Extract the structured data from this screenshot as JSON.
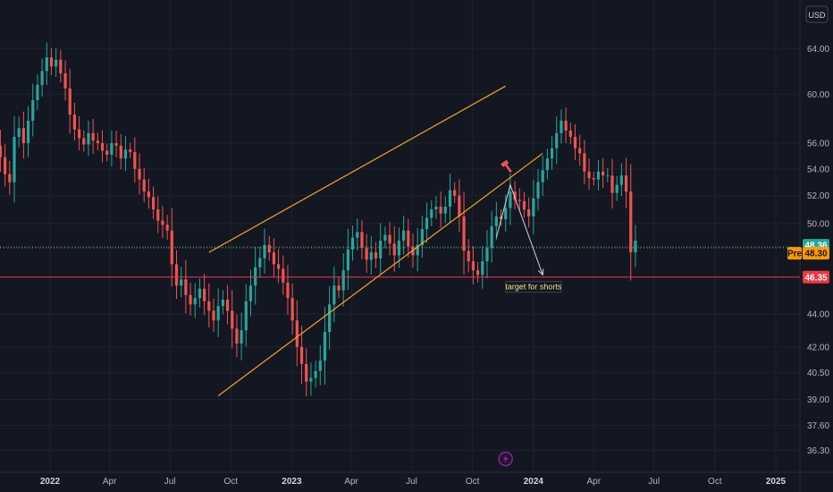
{
  "currency_button": "USD",
  "chart_data": {
    "type": "candlestick",
    "ylim": [
      35.5,
      67
    ],
    "y_ticks": [
      "64.00",
      "60.00",
      "56.00",
      "54.00",
      "52.00",
      "50.00",
      "48.36",
      "48.30",
      "46.35",
      "44.00",
      "42.00",
      "40.50",
      "39.00",
      "37.60",
      "36.30"
    ],
    "y_tick_values": [
      64,
      60,
      56,
      54,
      52,
      50,
      48.36,
      48.3,
      46.35,
      44,
      42,
      40.5,
      39,
      37.6,
      36.3
    ],
    "x_ticks": [
      {
        "label": "2022",
        "date": "2022-01-01",
        "major": true
      },
      {
        "label": "Apr",
        "date": "2022-04-01"
      },
      {
        "label": "Jul",
        "date": "2022-07-01"
      },
      {
        "label": "Oct",
        "date": "2022-10-01"
      },
      {
        "label": "2023",
        "date": "2023-01-01",
        "major": true
      },
      {
        "label": "Apr",
        "date": "2023-04-01"
      },
      {
        "label": "Jul",
        "date": "2023-07-01"
      },
      {
        "label": "Oct",
        "date": "2023-10-01"
      },
      {
        "label": "2024",
        "date": "2024-01-01",
        "major": true
      },
      {
        "label": "Apr",
        "date": "2024-04-01"
      },
      {
        "label": "Jul",
        "date": "2024-07-01"
      },
      {
        "label": "Oct",
        "date": "2024-10-01"
      },
      {
        "label": "2025",
        "date": "2025-01-01",
        "major": true
      }
    ],
    "closes": [
      55.2,
      55.8,
      54.9,
      53.6,
      53.0,
      56.5,
      57.2,
      56.0,
      57.8,
      59.5,
      60.8,
      62.0,
      63.2,
      62.4,
      63.0,
      61.8,
      60.5,
      58.3,
      57.1,
      56.4,
      55.9,
      56.8,
      56.2,
      56.0,
      55.4,
      55.1,
      56.0,
      55.8,
      54.8,
      55.5,
      55.3,
      54.0,
      53.2,
      52.3,
      51.9,
      51.0,
      50.2,
      49.9,
      49.5,
      47.2,
      45.8,
      46.2,
      45.2,
      44.6,
      45.0,
      45.6,
      44.8,
      44.2,
      43.6,
      44.5,
      44.9,
      44.2,
      43.1,
      42.2,
      43.0,
      44.8,
      45.8,
      47.0,
      47.6,
      48.5,
      48.0,
      47.2,
      46.9,
      46.0,
      45.0,
      43.6,
      42.0,
      41.0,
      40.0,
      40.2,
      40.6,
      41.2,
      42.9,
      44.6,
      45.8,
      45.5,
      46.8,
      48.2,
      49.0,
      49.4,
      48.3,
      47.5,
      48.0,
      47.6,
      48.8,
      49.2,
      48.6,
      47.8,
      48.8,
      49.5,
      48.4,
      47.8,
      48.5,
      49.6,
      50.4,
      51.0,
      51.2,
      50.7,
      51.2,
      52.4,
      52.0,
      50.5,
      48.1,
      47.4,
      46.8,
      46.5,
      47.4,
      48.3,
      49.8,
      50.5,
      50.3,
      51.1,
      52.3,
      51.7,
      51.6,
      51.0,
      50.5,
      51.8,
      53.0,
      53.9,
      54.8,
      55.6,
      56.8,
      57.8,
      57.0,
      56.5,
      55.6,
      55.2,
      53.8,
      53.3,
      53.2,
      53.8,
      53.5,
      53.5,
      52.2,
      52.8,
      53.5,
      52.3,
      48.0,
      48.8
    ],
    "series_start": "2021-10-04",
    "series_interval_days": 7,
    "rising_channel": {
      "upper": [
        {
          "date": "2022-08-29",
          "y": 48.0
        },
        {
          "date": "2023-11-20",
          "y": 60.7
        }
      ],
      "lower": [
        {
          "date": "2022-09-12",
          "y": 39.2
        },
        {
          "date": "2024-01-15",
          "y": 55.2
        }
      ]
    },
    "support_level": 46.35,
    "last_price": 48.36,
    "pre_price": 48.3,
    "projection": [
      {
        "date": "2023-11-06",
        "y": 49.0
      },
      {
        "date": "2023-11-27",
        "y": 52.8
      },
      {
        "date": "2024-01-15",
        "y": 46.5
      }
    ],
    "annotation": {
      "text": "target for shorts",
      "date": "2024-01-01",
      "y": 45.6
    },
    "badges": {
      "last": "48.36",
      "pre_label": "Pre",
      "pre_value": "48.30",
      "support": "46.35"
    },
    "colors": {
      "up": "#26a69a",
      "down": "#ef5350",
      "channel": "#f7a325",
      "support": "#f23645",
      "last": "#26a69a",
      "pre": "#ff9800",
      "grid": "#1e222d",
      "projection": "#d1d4dc",
      "lightning": "#9c27b0"
    },
    "grid": true
  }
}
